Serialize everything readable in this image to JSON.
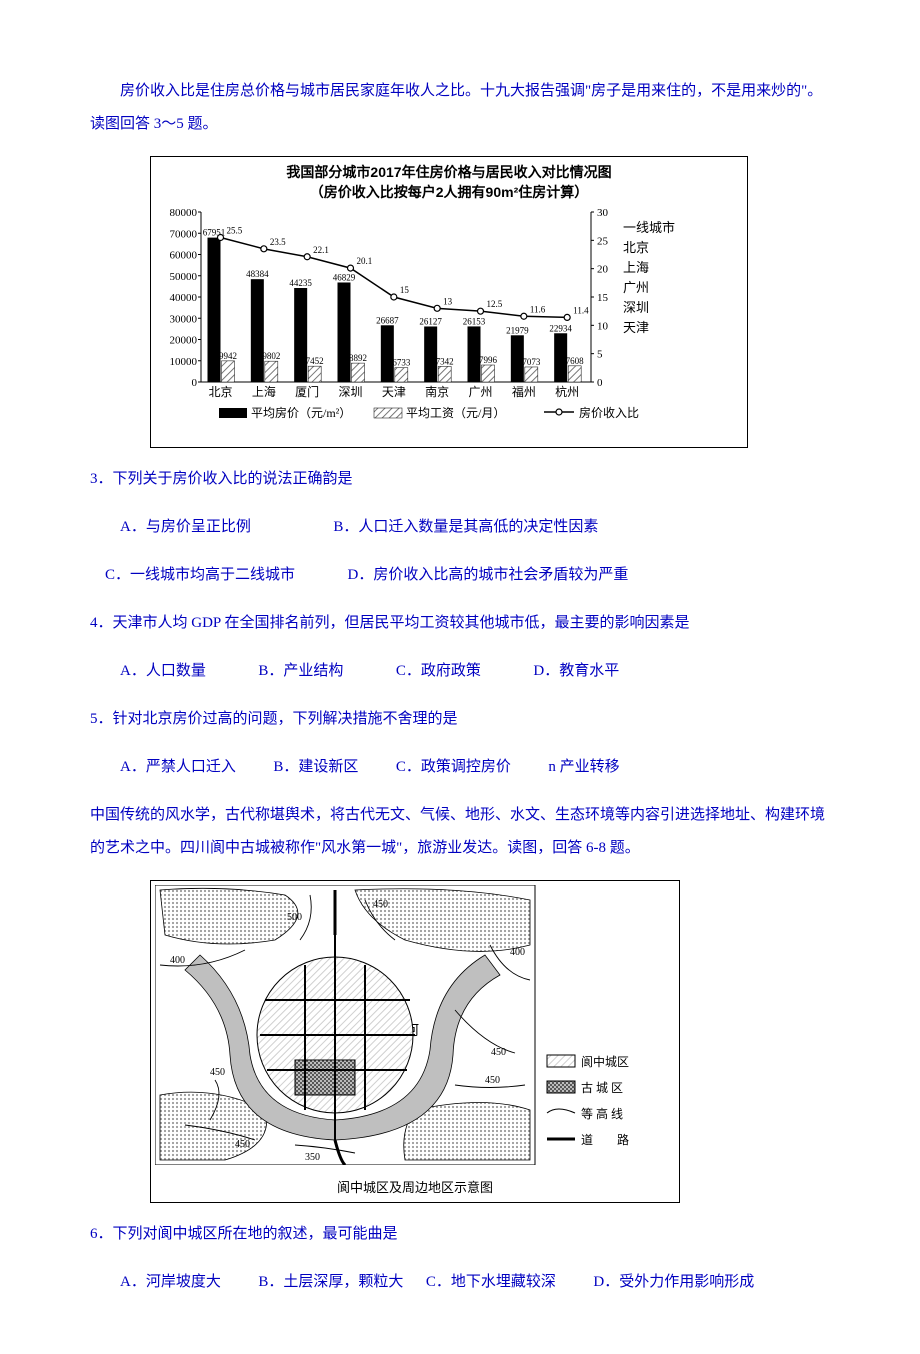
{
  "intro1": "房价收入比是住房总价格与城市居民家庭年收人之比。十九大报告强调\"房子是用来住的，不是用来炒的\"。读图回答 3～5 题。",
  "chart": {
    "type": "bar+line",
    "title_l1": "我国部分城市2017年住房价格与居民收入对比情况图",
    "title_l2": "（房价收入比按每户2人拥有90m²住房计算）",
    "categories": [
      "北京",
      "上海",
      "厦门",
      "深圳",
      "天津",
      "南京",
      "广州",
      "福州",
      "杭州"
    ],
    "bar_price": [
      67951,
      48384,
      44235,
      46829,
      26687,
      26127,
      26153,
      21979,
      22934
    ],
    "bar_wage": [
      9942,
      9802,
      7452,
      8892,
      6733,
      7342,
      7996,
      7073,
      7608
    ],
    "line_ratio": [
      25.5,
      23.5,
      22.1,
      20.1,
      15,
      13,
      12.5,
      11.6,
      11.4
    ],
    "y_left_max": 80000,
    "y_left_step": 10000,
    "y_right_max": 30,
    "y_right_step": 5,
    "series_price_label": "平均房价（元/m²）",
    "series_wage_label": "平均工资（元/月）",
    "series_ratio_label": "房价收入比",
    "price_fill": "#000000",
    "wage_hatch": "#777777",
    "line_color": "#000000",
    "bg": "#ffffff",
    "inset_title": "一线城市",
    "inset_items": [
      "北京",
      "上海",
      "广州",
      "深圳",
      "天津"
    ],
    "axis_fontsize": 11,
    "value_fontsize": 9
  },
  "q3": {
    "stem": "3．下列关于房价收入比的说法正确韵是",
    "A": "A．与房价呈正比例",
    "B": "B．人口迁入数量是其高低的决定性因素",
    "C": "C．一线城市均高于二线城市",
    "D": "D．房价收入比高的城市社会矛盾较为严重"
  },
  "q4": {
    "stem": "4．天津市人均 GDP 在全国排名前列，但居民平均工资较其他城市低，最主要的影响因素是",
    "A": "A．人口数量",
    "B": "B．产业结构",
    "C": "C．政府政策",
    "D": "D．教育水平"
  },
  "q5": {
    "stem": "5．针对北京房价过高的问题，下列解决措施不舍理的是",
    "A": "A．严禁人口迁入",
    "B": "B．建设新区",
    "C": "C．政策调控房价",
    "D": "n 产业转移"
  },
  "intro2": "中国传统的风水学，古代称堪舆术，将古代无文、气候、地形、水文、生态环境等内容引进选择地址、构建环境的艺术之中。四川阆中古城被称作\"风水第一城\"，旅游业发达。读图，回答 6-8 题。",
  "map": {
    "type": "map-schematic",
    "river_label": "河",
    "contours": [
      350,
      400,
      450,
      500
    ],
    "contour_fontsize": 10,
    "legend": {
      "city": "阆中城区",
      "ancient": "古 城 区",
      "contour": "等 高 线",
      "road": "道　　路"
    },
    "caption": "阆中城区及周边地区示意图",
    "river_color": "#bfbfbf",
    "hill_color": "#9a9a9a",
    "city_hatch": "#cfcfcf",
    "ancient_hatch": "#555555",
    "line_color": "#000000",
    "bg": "#ffffff"
  },
  "q6": {
    "stem": "6．下列对阆中城区所在地的叙述，最可能曲是",
    "A": "A．河岸坡度大",
    "B": "B．土层深厚，颗粒大",
    "C": "C．地下水埋藏较深",
    "D": "D．受外力作用影响形成"
  }
}
